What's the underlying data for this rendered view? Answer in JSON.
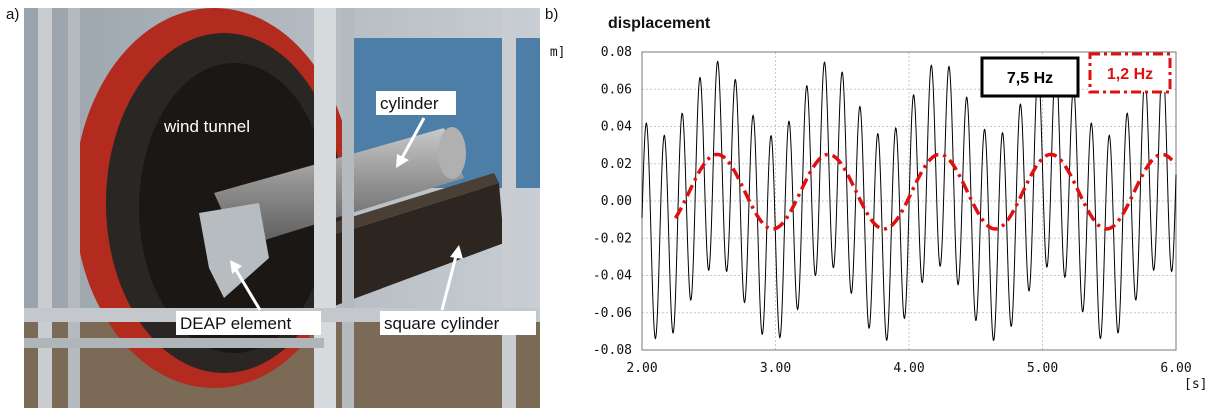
{
  "panel_a_label": "a)",
  "panel_b_label": "b)",
  "photo": {
    "label_wind_tunnel": "wind tunnel",
    "label_cylinder": "cylinder",
    "label_deap": "DEAP element",
    "label_square": "square cylinder"
  },
  "chart_data": {
    "type": "line",
    "title": "displacement",
    "xlabel": "[s]",
    "ylabel": "[m]",
    "xlim": [
      2.0,
      6.0
    ],
    "ylim": [
      -0.08,
      0.08
    ],
    "xticks": [
      "2.00",
      "3.00",
      "4.00",
      "5.00",
      "6.00"
    ],
    "yticks": [
      "0.08",
      "0.06",
      "0.04",
      "0.02",
      "0.00",
      "-0.02",
      "-0.04",
      "-0.06",
      "-0.08"
    ],
    "grid": true,
    "series": [
      {
        "name": "7,5 Hz",
        "color": "#000000",
        "style": "solid",
        "frequency_hz": 7.5,
        "amplitude": 0.055,
        "x_range": [
          2.0,
          6.0
        ]
      },
      {
        "name": "1,2 Hz",
        "color": "#e01010",
        "style": "dash-dot",
        "frequency_hz": 1.2,
        "amplitude": 0.02,
        "offset": 0.005,
        "x_range": [
          2.25,
          5.97
        ]
      }
    ],
    "legend_placement": "top-right"
  }
}
